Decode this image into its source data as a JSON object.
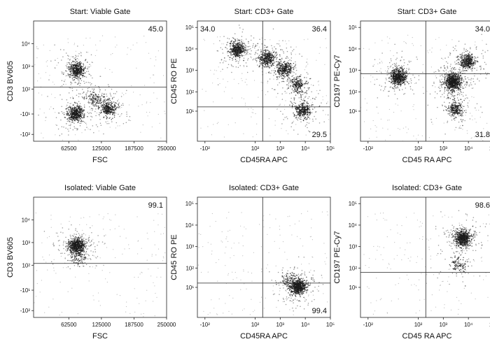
{
  "chart_data": [
    {
      "type": "scatter",
      "title": "Start: Viable Gate",
      "xlabel": "FSC",
      "ylabel": "CD3 BV605",
      "x_scale": "linear",
      "y_scale": "biexponential",
      "xlim": [
        -5000,
        250000
      ],
      "ylim": [
        -200,
        100000
      ],
      "x_ticks": [
        "62500",
        "125000",
        "187500",
        "250000"
      ],
      "y_ticks": [
        "-10²",
        "-10¹",
        "10²",
        "10³",
        "10⁴"
      ],
      "gates": {
        "horizontal_y": 120
      },
      "quadrant_values": [
        {
          "value": "45.0",
          "position": "top-right"
        }
      ],
      "populations": [
        {
          "x": 78000,
          "y": 700,
          "n": 520
        },
        {
          "x": 75000,
          "y": -8,
          "n": 560
        },
        {
          "x": 138000,
          "y": 15,
          "n": 380
        },
        {
          "x": 110000,
          "y": 60,
          "n": 140
        }
      ]
    },
    {
      "type": "scatter",
      "title": "Start: CD3+ Gate",
      "xlabel": "CD45RA APC",
      "ylabel": "CD45 RO PE",
      "x_scale": "biexponential",
      "y_scale": "biexponential",
      "xlim": [
        -200,
        100000
      ],
      "ylim": [
        -200,
        200000
      ],
      "x_ticks": [
        "-10²",
        "10²",
        "10³",
        "10⁴",
        "10⁵"
      ],
      "y_ticks": [
        "10¹",
        "10²",
        "10³",
        "10⁴",
        "10⁵"
      ],
      "gates": {
        "vertical_x": 200,
        "horizontal_y": 30
      },
      "quadrant_values": [
        {
          "value": "34.0",
          "position": "top-left"
        },
        {
          "value": "36.4",
          "position": "top-right"
        },
        {
          "value": "29.5",
          "position": "bottom-right"
        }
      ],
      "populations": [
        {
          "x": 30,
          "y": 9000,
          "n": 500
        },
        {
          "x": 300,
          "y": 3500,
          "n": 420
        },
        {
          "x": 1500,
          "y": 1200,
          "n": 380
        },
        {
          "x": 5000,
          "y": 200,
          "n": 260
        },
        {
          "x": 8000,
          "y": 15,
          "n": 380
        }
      ]
    },
    {
      "type": "scatter",
      "title": "Start: CD3+ Gate",
      "xlabel": "CD45 RA APC",
      "ylabel": "CD197 PE-Cy7",
      "x_scale": "biexponential",
      "y_scale": "biexponential",
      "xlim": [
        -200,
        100000
      ],
      "ylim": [
        -200,
        200000
      ],
      "x_ticks": [
        "-10²",
        "10²",
        "10³",
        "10⁴",
        "10⁵"
      ],
      "y_ticks": [
        "10¹",
        "10²",
        "10³",
        "10⁴",
        "10⁵"
      ],
      "gates": {
        "vertical_x": 200,
        "horizontal_y": 700
      },
      "quadrant_values": [
        {
          "value": "34.0",
          "position": "top-right"
        },
        {
          "value": "31.8",
          "position": "bottom-right"
        }
      ],
      "populations": [
        {
          "x": 20,
          "y": 500,
          "n": 700
        },
        {
          "x": 2500,
          "y": 300,
          "n": 900
        },
        {
          "x": 9000,
          "y": 2500,
          "n": 450
        },
        {
          "x": 3000,
          "y": 20,
          "n": 300
        }
      ]
    },
    {
      "type": "scatter",
      "title": "Isolated: Viable Gate",
      "xlabel": "FSC",
      "ylabel": "CD3 BV605",
      "x_scale": "linear",
      "y_scale": "biexponential",
      "xlim": [
        -5000,
        250000
      ],
      "ylim": [
        -200,
        100000
      ],
      "x_ticks": [
        "62500",
        "125000",
        "187500",
        "250000"
      ],
      "y_ticks": [
        "-10²",
        "-10¹",
        "10²",
        "10³",
        "10⁴"
      ],
      "gates": {
        "horizontal_y": 120
      },
      "quadrant_values": [
        {
          "value": "99.1",
          "position": "top-right"
        }
      ],
      "populations": [
        {
          "x": 78000,
          "y": 700,
          "n": 750
        },
        {
          "x": 80000,
          "y": 200,
          "n": 80
        }
      ]
    },
    {
      "type": "scatter",
      "title": "Isolated: CD3+ Gate",
      "xlabel": "CD45RA APC",
      "ylabel": "CD45 RO PE",
      "x_scale": "biexponential",
      "y_scale": "biexponential",
      "xlim": [
        -200,
        100000
      ],
      "ylim": [
        -200,
        200000
      ],
      "x_ticks": [
        "-10²",
        "10²",
        "10³",
        "10⁴",
        "10⁵"
      ],
      "y_ticks": [
        "10¹",
        "10²",
        "10³",
        "10⁴",
        "10⁵"
      ],
      "gates": {
        "vertical_x": 200,
        "horizontal_y": 30
      },
      "quadrant_values": [
        {
          "value": "99.4",
          "position": "bottom-right"
        }
      ],
      "populations": [
        {
          "x": 5000,
          "y": 12,
          "n": 750
        },
        {
          "x": 2000,
          "y": 40,
          "n": 90
        }
      ]
    },
    {
      "type": "scatter",
      "title": "Isolated: CD3+ Gate",
      "xlabel": "CD45 RA APC",
      "ylabel": "CD197 PE-Cy7",
      "x_scale": "biexponential",
      "y_scale": "biexponential",
      "xlim": [
        -200,
        100000
      ],
      "ylim": [
        -200,
        200000
      ],
      "x_ticks": [
        "-10²",
        "10²",
        "10³",
        "10⁴",
        "10⁵"
      ],
      "y_ticks": [
        "10¹",
        "10²",
        "10³",
        "10⁴",
        "10⁵"
      ],
      "gates": {
        "vertical_x": 200,
        "horizontal_y": 80
      },
      "quadrant_values": [
        {
          "value": "98.6",
          "position": "top-right"
        }
      ],
      "populations": [
        {
          "x": 6000,
          "y": 2500,
          "n": 750
        },
        {
          "x": 4000,
          "y": 150,
          "n": 120
        }
      ]
    }
  ]
}
